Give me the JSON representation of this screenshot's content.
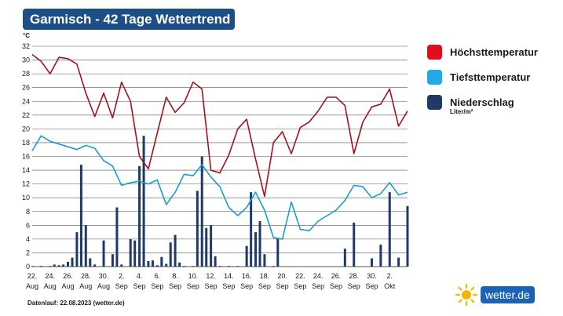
{
  "title": "Garmisch - 42 Tage Wettertrend",
  "footer": "Datenlauf: 22.08.2023 (wetter.de)",
  "logo_text": "wetter.de",
  "legend": {
    "high_label": "Höchsttemperatur",
    "low_label": "Tiefsttemperatur",
    "precip_label": "Niederschlag",
    "precip_unit": "Liter/m²"
  },
  "colors": {
    "title_bg": "#1c4f86",
    "high": "#a3121c",
    "high_legend": "#e10e1b",
    "low": "#1a9bd6",
    "low_legend": "#23a9e8",
    "precip": "#1f3a66",
    "grid": "#555555"
  },
  "chart_data": {
    "type": "line",
    "y_unit_label": "°C",
    "ylim": [
      0,
      32
    ],
    "yticks": [
      0,
      2,
      4,
      6,
      8,
      10,
      12,
      14,
      16,
      18,
      20,
      22,
      24,
      26,
      28,
      30,
      32
    ],
    "grid": true,
    "legend_position": "right",
    "x_tick_labels": [
      {
        "day": "22.",
        "month": "Aug"
      },
      {
        "day": "24.",
        "month": "Aug"
      },
      {
        "day": "26.",
        "month": "Aug"
      },
      {
        "day": "28.",
        "month": "Aug"
      },
      {
        "day": "30.",
        "month": "Aug"
      },
      {
        "day": "2.",
        "month": "Sep"
      },
      {
        "day": "4.",
        "month": "Sep"
      },
      {
        "day": "6.",
        "month": "Sep"
      },
      {
        "day": "8.",
        "month": "Sep"
      },
      {
        "day": "10.",
        "month": "Sep"
      },
      {
        "day": "12.",
        "month": "Sep"
      },
      {
        "day": "14.",
        "month": "Sep"
      },
      {
        "day": "16.",
        "month": "Sep"
      },
      {
        "day": "18.",
        "month": "Sep"
      },
      {
        "day": "20.",
        "month": "Sep"
      },
      {
        "day": "22.",
        "month": "Sep"
      },
      {
        "day": "24.",
        "month": "Sep"
      },
      {
        "day": "26.",
        "month": "Sep"
      },
      {
        "day": "28.",
        "month": "Sep"
      },
      {
        "day": "30.",
        "month": "Sep"
      },
      {
        "day": "2.",
        "month": "Okt"
      }
    ],
    "x_start": "2023-08-22",
    "x_end": "2023-10-03",
    "series": [
      {
        "name": "Höchsttemperatur",
        "kind": "line",
        "points": [
          [
            "2023-08-22",
            30.8
          ],
          [
            "2023-08-23",
            29.8
          ],
          [
            "2023-08-24",
            28.0
          ],
          [
            "2023-08-25",
            30.4
          ],
          [
            "2023-08-26",
            30.2
          ],
          [
            "2023-08-27",
            29.4
          ],
          [
            "2023-08-28",
            25.2
          ],
          [
            "2023-08-29",
            21.8
          ],
          [
            "2023-08-30",
            25.2
          ],
          [
            "2023-08-31",
            21.6
          ],
          [
            "2023-09-01",
            26.8
          ],
          [
            "2023-09-02",
            24.0
          ],
          [
            "2023-09-03",
            16.0
          ],
          [
            "2023-09-04",
            14.2
          ],
          [
            "2023-09-05",
            19.4
          ],
          [
            "2023-09-06",
            24.6
          ],
          [
            "2023-09-07",
            22.4
          ],
          [
            "2023-09-08",
            23.8
          ],
          [
            "2023-09-09",
            26.8
          ],
          [
            "2023-09-10",
            25.8
          ],
          [
            "2023-09-11",
            14.0
          ],
          [
            "2023-09-12",
            13.6
          ],
          [
            "2023-09-13",
            16.2
          ],
          [
            "2023-09-14",
            20.0
          ],
          [
            "2023-09-15",
            21.4
          ],
          [
            "2023-09-16",
            15.6
          ],
          [
            "2023-09-17",
            10.2
          ],
          [
            "2023-09-18",
            18.0
          ],
          [
            "2023-09-19",
            19.6
          ],
          [
            "2023-09-20",
            16.4
          ],
          [
            "2023-09-21",
            20.2
          ],
          [
            "2023-09-22",
            21.0
          ],
          [
            "2023-09-23",
            22.6
          ],
          [
            "2023-09-24",
            24.6
          ],
          [
            "2023-09-25",
            24.6
          ],
          [
            "2023-09-26",
            23.4
          ],
          [
            "2023-09-27",
            16.4
          ],
          [
            "2023-09-28",
            21.0
          ],
          [
            "2023-09-29",
            23.2
          ],
          [
            "2023-09-30",
            23.6
          ],
          [
            "2023-10-01",
            25.8
          ],
          [
            "2023-10-02",
            20.4
          ],
          [
            "2023-10-03",
            22.6
          ]
        ]
      },
      {
        "name": "Tiefsttemperatur",
        "kind": "line",
        "points": [
          [
            "2023-08-22",
            16.8
          ],
          [
            "2023-08-23",
            19.0
          ],
          [
            "2023-08-24",
            18.2
          ],
          [
            "2023-08-25",
            17.8
          ],
          [
            "2023-08-26",
            17.4
          ],
          [
            "2023-08-27",
            17.0
          ],
          [
            "2023-08-28",
            17.6
          ],
          [
            "2023-08-29",
            17.2
          ],
          [
            "2023-08-30",
            15.4
          ],
          [
            "2023-08-31",
            14.6
          ],
          [
            "2023-09-01",
            11.8
          ],
          [
            "2023-09-02",
            12.2
          ],
          [
            "2023-09-03",
            12.4
          ],
          [
            "2023-09-04",
            12.0
          ],
          [
            "2023-09-05",
            12.6
          ],
          [
            "2023-09-06",
            9.0
          ],
          [
            "2023-09-07",
            10.8
          ],
          [
            "2023-09-08",
            13.4
          ],
          [
            "2023-09-09",
            13.2
          ],
          [
            "2023-09-10",
            14.8
          ],
          [
            "2023-09-11",
            13.0
          ],
          [
            "2023-09-12",
            11.6
          ],
          [
            "2023-09-13",
            8.6
          ],
          [
            "2023-09-14",
            7.4
          ],
          [
            "2023-09-15",
            8.6
          ],
          [
            "2023-09-16",
            10.8
          ],
          [
            "2023-09-17",
            8.2
          ],
          [
            "2023-09-18",
            4.2
          ],
          [
            "2023-09-19",
            4.0
          ],
          [
            "2023-09-20",
            9.4
          ],
          [
            "2023-09-21",
            5.4
          ],
          [
            "2023-09-22",
            5.2
          ],
          [
            "2023-09-23",
            6.6
          ],
          [
            "2023-09-24",
            7.4
          ],
          [
            "2023-09-25",
            8.2
          ],
          [
            "2023-09-26",
            9.6
          ],
          [
            "2023-09-27",
            11.8
          ],
          [
            "2023-09-28",
            11.6
          ],
          [
            "2023-09-29",
            10.0
          ],
          [
            "2023-09-30",
            10.6
          ],
          [
            "2023-10-01",
            12.2
          ],
          [
            "2023-10-02",
            10.4
          ],
          [
            "2023-10-03",
            10.8
          ]
        ]
      },
      {
        "name": "Niederschlag",
        "kind": "bar",
        "unit": "Liter/m²",
        "points": [
          [
            "2023-08-22",
            0.1
          ],
          [
            "2023-08-23",
            0.1
          ],
          [
            "2023-08-24",
            0.1
          ],
          [
            "2023-08-24",
            0.3
          ],
          [
            "2023-08-25",
            0.2
          ],
          [
            "2023-08-25",
            0.3
          ],
          [
            "2023-08-26",
            0.7
          ],
          [
            "2023-08-26",
            1.3
          ],
          [
            "2023-08-27",
            5.0
          ],
          [
            "2023-08-27",
            14.8
          ],
          [
            "2023-08-28",
            6.0
          ],
          [
            "2023-08-28",
            1.2
          ],
          [
            "2023-08-29",
            0.3
          ],
          [
            "2023-08-30",
            3.8
          ],
          [
            "2023-08-31",
            1.8
          ],
          [
            "2023-08-31",
            8.6
          ],
          [
            "2023-09-01",
            0.3
          ],
          [
            "2023-09-02",
            4.0
          ],
          [
            "2023-09-02",
            3.8
          ],
          [
            "2023-09-03",
            14.6
          ],
          [
            "2023-09-03",
            19.0
          ],
          [
            "2023-09-04",
            0.8
          ],
          [
            "2023-09-04",
            0.9
          ],
          [
            "2023-09-05",
            0.2
          ],
          [
            "2023-09-05",
            1.4
          ],
          [
            "2023-09-06",
            0.4
          ],
          [
            "2023-09-06",
            3.5
          ],
          [
            "2023-09-07",
            4.6
          ],
          [
            "2023-09-07",
            0.6
          ],
          [
            "2023-09-08",
            0.1
          ],
          [
            "2023-09-09",
            0.1
          ],
          [
            "2023-09-09",
            11.0
          ],
          [
            "2023-09-10",
            16.0
          ],
          [
            "2023-09-10",
            5.6
          ],
          [
            "2023-09-11",
            6.0
          ],
          [
            "2023-09-11",
            1.5
          ],
          [
            "2023-09-12",
            0.1
          ],
          [
            "2023-09-13",
            0.1
          ],
          [
            "2023-09-14",
            0.1
          ],
          [
            "2023-09-15",
            3.0
          ],
          [
            "2023-09-15",
            10.8
          ],
          [
            "2023-09-16",
            5.0
          ],
          [
            "2023-09-16",
            6.6
          ],
          [
            "2023-09-17",
            1.8
          ],
          [
            "2023-09-18",
            0.1
          ],
          [
            "2023-09-18",
            4.0
          ],
          [
            "2023-09-26",
            2.6
          ],
          [
            "2023-09-27",
            6.4
          ],
          [
            "2023-09-29",
            1.2
          ],
          [
            "2023-09-30",
            3.2
          ],
          [
            "2023-10-01",
            10.8
          ],
          [
            "2023-10-02",
            1.3
          ],
          [
            "2023-10-03",
            8.8
          ]
        ]
      }
    ]
  }
}
